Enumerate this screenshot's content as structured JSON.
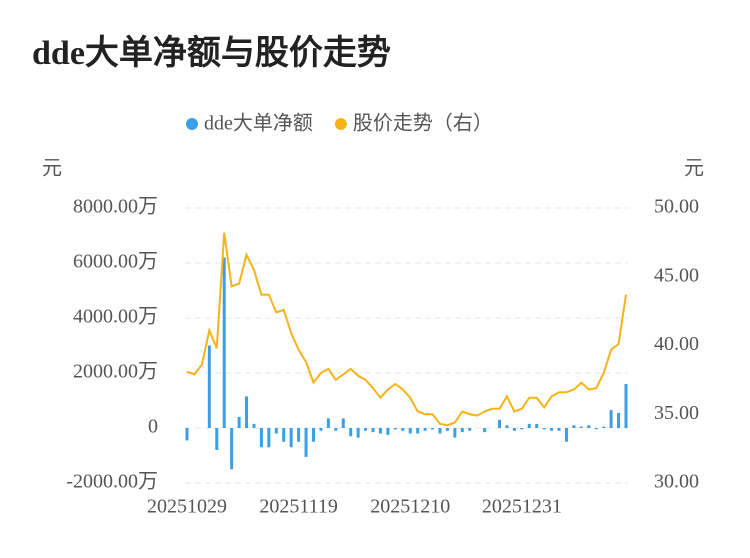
{
  "chart_data": {
    "type": "bar-line",
    "title": "dde大单净额与股价走势",
    "y_axis_label": "元",
    "y2_axis_label": "元",
    "categories": [
      "20251029",
      null,
      null,
      null,
      null,
      null,
      null,
      null,
      null,
      null,
      null,
      null,
      null,
      null,
      null,
      "20251119",
      null,
      null,
      null,
      null,
      null,
      null,
      null,
      null,
      null,
      null,
      null,
      null,
      null,
      null,
      "20251210",
      null,
      null,
      null,
      null,
      null,
      null,
      null,
      null,
      null,
      null,
      null,
      null,
      null,
      null,
      "20251231",
      null,
      null,
      null,
      null,
      null,
      null,
      null,
      null,
      null,
      null,
      null,
      null,
      null,
      null
    ],
    "series": [
      {
        "name": "dde大单净额",
        "type": "bar",
        "color": "#3a9ee8",
        "values": [
          -450,
          0,
          0,
          3000,
          -800,
          6200,
          -1500,
          400,
          1150,
          150,
          -700,
          -700,
          -200,
          -500,
          -700,
          -500,
          -1050,
          -500,
          -100,
          350,
          -100,
          350,
          -300,
          -350,
          -100,
          -150,
          -200,
          -250,
          -50,
          -100,
          -200,
          -200,
          -100,
          -50,
          -200,
          -100,
          -350,
          -150,
          -100,
          0,
          -150,
          0,
          300,
          100,
          -100,
          -50,
          150,
          150,
          -50,
          -100,
          -100,
          -500,
          100,
          50,
          100,
          -50,
          50,
          650,
          550,
          1600
        ]
      },
      {
        "name": "股价走势（右）",
        "type": "line",
        "axis": "y2",
        "color": "#f5b31a",
        "values": [
          38.1,
          37.9,
          38.6,
          41.1,
          39.8,
          48.2,
          44.3,
          44.5,
          46.6,
          45.5,
          43.7,
          43.7,
          42.4,
          42.6,
          40.9,
          39.7,
          38.8,
          37.3,
          38.0,
          38.3,
          37.5,
          37.9,
          38.3,
          37.8,
          37.5,
          36.9,
          36.2,
          36.8,
          37.2,
          36.8,
          36.2,
          35.2,
          35.0,
          35.0,
          34.3,
          34.2,
          34.4,
          35.2,
          35.0,
          34.9,
          35.2,
          35.4,
          35.4,
          36.3,
          35.2,
          35.4,
          36.2,
          36.2,
          35.5,
          36.3,
          36.6,
          36.6,
          36.8,
          37.3,
          36.8,
          36.9,
          38.0,
          39.7,
          40.1,
          43.7
        ]
      }
    ],
    "ylim": [
      -2000,
      8000
    ],
    "yticks": [
      {
        "value": -2000,
        "label": "-2000.00万"
      },
      0,
      {
        "value": 2000,
        "label": "2000.00万"
      },
      {
        "value": 4000,
        "label": "4000.00万"
      },
      {
        "value": 6000,
        "label": "6000.00万"
      },
      {
        "value": 8000,
        "label": "8000.00万"
      }
    ],
    "y2lim": [
      30,
      50
    ],
    "y2ticks": [
      {
        "value": 30,
        "label": "30.00"
      },
      {
        "value": 35,
        "label": "35.00"
      },
      {
        "value": 40,
        "label": "40.00"
      },
      {
        "value": 45,
        "label": "45.00"
      },
      {
        "value": 50,
        "label": "50.00"
      }
    ],
    "grid": true
  }
}
